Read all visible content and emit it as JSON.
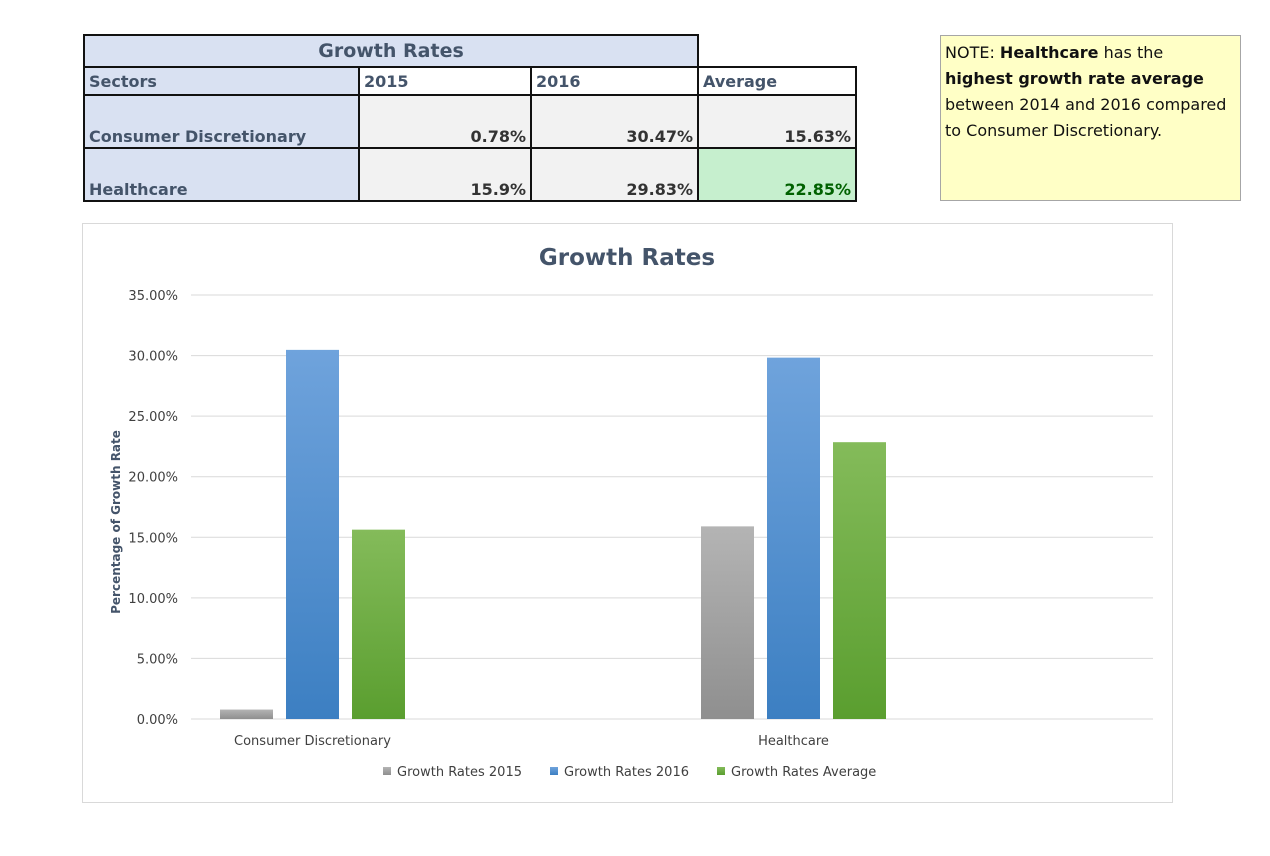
{
  "table": {
    "title": "Growth Rates",
    "headers": [
      "Sectors",
      "2015",
      "2016",
      "Average"
    ],
    "rows": [
      {
        "sector": "Consumer Discretionary",
        "y2015": "0.78%",
        "y2016": "30.47%",
        "average": "15.63%"
      },
      {
        "sector": "Healthcare",
        "y2015": "15.9%",
        "y2016": "29.83%",
        "average": "22.85%"
      }
    ]
  },
  "note": {
    "prefix": "NOTE: ",
    "bold1": "Healthcare",
    "mid": " has the ",
    "bold2": "highest growth rate average",
    "suffix": " between 2014 and 2016 compared to Consumer Discretionary."
  },
  "chart_data": {
    "type": "bar",
    "title": "Growth Rates",
    "ylabel": "Percentage of Growth Rate",
    "xlabel": "",
    "categories": [
      "Consumer Discretionary",
      "Healthcare"
    ],
    "series": [
      {
        "name": "Growth Rates 2015",
        "values": [
          0.78,
          15.9
        ]
      },
      {
        "name": "Growth Rates 2016",
        "values": [
          30.47,
          29.83
        ]
      },
      {
        "name": "Growth Rates Average",
        "values": [
          15.63,
          22.85
        ]
      }
    ],
    "ylim": [
      0,
      35
    ],
    "yticks": [
      0,
      5,
      10,
      15,
      20,
      25,
      30,
      35
    ],
    "ytick_labels": [
      "0.00%",
      "5.00%",
      "10.00%",
      "15.00%",
      "20.00%",
      "25.00%",
      "30.00%",
      "35.00%"
    ],
    "grid": true,
    "legend_position": "bottom"
  },
  "colors": {
    "series_2015": [
      "#b4b4b4",
      "#8f8f8f"
    ],
    "series_2016": [
      "#6fa3dc",
      "#3c7fc2"
    ],
    "series_avg": [
      "#84bb5a",
      "#5a9e2f"
    ],
    "gridline": "#d9d9d9"
  }
}
